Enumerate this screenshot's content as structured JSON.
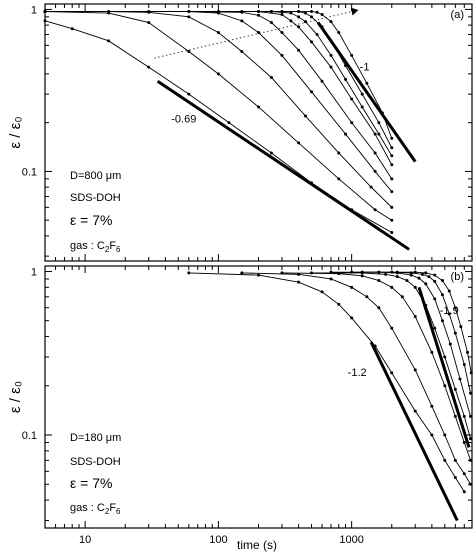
{
  "figure": {
    "x_axis_label": "time (s)",
    "x_ticks": [
      {
        "value": 10,
        "label": "10"
      },
      {
        "value": 100,
        "label": "100"
      },
      {
        "value": 1000,
        "label": "1000"
      }
    ]
  },
  "chart_data": [
    {
      "type": "line",
      "panel_label": "(a)",
      "ylabel": "ε / ε₀",
      "xlabel": "",
      "x_scale": "log",
      "y_scale": "log",
      "xlim": [
        5,
        8000
      ],
      "ylim": [
        0.028,
        1.08
      ],
      "y_ticks": [
        {
          "value": 1,
          "label": "1"
        },
        {
          "value": 0.1,
          "label": "0.1"
        }
      ],
      "annotations": {
        "D": "D=800 μm",
        "surfactant": "SDS-DOH",
        "strain": "ε = 7%",
        "gas_prefix": "gas : C",
        "gas_sub1": "2",
        "gas_mid": "F",
        "gas_sub2": "6"
      },
      "reference_lines": [
        {
          "label": "-1",
          "from": [
            560,
            0.83
          ],
          "to": [
            3000,
            0.115
          ],
          "label_at": [
            1250,
            0.42
          ]
        },
        {
          "label": "-0.69",
          "from": [
            35,
            0.36
          ],
          "to": [
            2700,
            0.033
          ],
          "label_at": [
            55,
            0.2
          ]
        }
      ],
      "arrow": {
        "from": [
          33,
          0.5
        ],
        "to": [
          1000,
          0.97
        ]
      },
      "series": [
        {
          "x": [
            5,
            8,
            15,
            30,
            60,
            120,
            250,
            500,
            1000,
            2000
          ],
          "y": [
            0.85,
            0.76,
            0.64,
            0.44,
            0.3,
            0.2,
            0.13,
            0.085,
            0.058,
            0.042
          ]
        },
        {
          "x": [
            5,
            15,
            30,
            60,
            100,
            200,
            400,
            800,
            1500,
            2000
          ],
          "y": [
            0.97,
            0.95,
            0.83,
            0.55,
            0.4,
            0.25,
            0.15,
            0.09,
            0.058,
            0.05
          ]
        },
        {
          "x": [
            5,
            15,
            30,
            60,
            100,
            150,
            250,
            450,
            800,
            1400,
            2000
          ],
          "y": [
            0.97,
            0.97,
            0.96,
            0.9,
            0.72,
            0.55,
            0.38,
            0.22,
            0.13,
            0.08,
            0.06
          ]
        },
        {
          "x": [
            5,
            30,
            60,
            100,
            150,
            200,
            300,
            500,
            900,
            1500,
            2000
          ],
          "y": [
            0.97,
            0.97,
            0.97,
            0.95,
            0.85,
            0.72,
            0.52,
            0.31,
            0.17,
            0.1,
            0.075
          ]
        },
        {
          "x": [
            5,
            60,
            150,
            200,
            250,
            300,
            400,
            600,
            1000,
            1500,
            2000
          ],
          "y": [
            0.97,
            0.97,
            0.96,
            0.92,
            0.83,
            0.72,
            0.56,
            0.36,
            0.2,
            0.13,
            0.09
          ]
        },
        {
          "x": [
            5,
            100,
            200,
            300,
            350,
            400,
            500,
            700,
            1000,
            1500,
            2000
          ],
          "y": [
            0.97,
            0.97,
            0.97,
            0.93,
            0.85,
            0.78,
            0.63,
            0.44,
            0.28,
            0.17,
            0.11
          ]
        },
        {
          "x": [
            5,
            150,
            250,
            350,
            400,
            450,
            550,
            700,
            900,
            1200,
            1600,
            2000
          ],
          "y": [
            0.97,
            0.97,
            0.97,
            0.95,
            0.9,
            0.84,
            0.7,
            0.52,
            0.37,
            0.25,
            0.17,
            0.125
          ]
        },
        {
          "x": [
            5,
            200,
            300,
            400,
            450,
            500,
            600,
            700,
            900,
            1200,
            1600,
            2000
          ],
          "y": [
            0.97,
            0.97,
            0.97,
            0.97,
            0.95,
            0.9,
            0.78,
            0.64,
            0.45,
            0.3,
            0.2,
            0.14
          ]
        },
        {
          "x": [
            5,
            250,
            400,
            500,
            550,
            600,
            700,
            800,
            1000,
            1300,
            1700,
            2000
          ],
          "y": [
            0.97,
            0.97,
            0.97,
            0.97,
            0.96,
            0.93,
            0.84,
            0.72,
            0.52,
            0.35,
            0.23,
            0.16
          ]
        }
      ]
    },
    {
      "type": "line",
      "panel_label": "(b)",
      "ylabel": "ε / ε₀",
      "xlabel": "time (s)",
      "x_scale": "log",
      "y_scale": "log",
      "xlim": [
        5,
        8000
      ],
      "ylim": [
        0.027,
        1.08
      ],
      "y_ticks": [
        {
          "value": 1,
          "label": "1"
        },
        {
          "value": 0.1,
          "label": "0.1"
        }
      ],
      "annotations": {
        "D": "D=180 μm",
        "surfactant": "SDS-DOH",
        "strain": "ε = 7%",
        "gas_prefix": "gas : C",
        "gas_sub1": "2",
        "gas_mid": "F",
        "gas_sub2": "6"
      },
      "reference_lines": [
        {
          "label": "-1.9",
          "from": [
            3200,
            0.8
          ],
          "to": [
            7600,
            0.084
          ],
          "label_at": [
            5400,
            0.55
          ]
        },
        {
          "label": "-1.2",
          "from": [
            1400,
            0.37
          ],
          "to": [
            6200,
            0.03
          ],
          "label_at": [
            1100,
            0.23
          ]
        }
      ],
      "series": [
        {
          "x": [
            60,
            200,
            400,
            600,
            800,
            1000,
            1500,
            2000,
            3000,
            4000,
            5000,
            6000,
            7000
          ],
          "y": [
            0.98,
            0.95,
            0.86,
            0.75,
            0.63,
            0.52,
            0.35,
            0.24,
            0.14,
            0.1,
            0.07,
            0.055,
            0.045
          ]
        },
        {
          "x": [
            150,
            400,
            700,
            1000,
            1300,
            1600,
            2000,
            3000,
            4000,
            5000,
            6000,
            7000,
            7800
          ],
          "y": [
            0.98,
            0.96,
            0.9,
            0.8,
            0.7,
            0.6,
            0.45,
            0.25,
            0.15,
            0.1,
            0.07,
            0.058,
            0.05
          ]
        },
        {
          "x": [
            300,
            800,
            1200,
            1600,
            2000,
            2400,
            3000,
            4000,
            5000,
            6000,
            7000,
            7800
          ],
          "y": [
            0.98,
            0.97,
            0.94,
            0.88,
            0.8,
            0.7,
            0.53,
            0.32,
            0.2,
            0.13,
            0.09,
            0.07
          ]
        },
        {
          "x": [
            500,
            1200,
            1800,
            2200,
            2600,
            3000,
            3600,
            4200,
            5000,
            6000,
            7000,
            7800
          ],
          "y": [
            0.98,
            0.98,
            0.96,
            0.93,
            0.88,
            0.8,
            0.62,
            0.45,
            0.3,
            0.19,
            0.13,
            0.095
          ]
        },
        {
          "x": [
            700,
            1600,
            2200,
            2800,
            3200,
            3600,
            4200,
            4800,
            5500,
            6500,
            7800
          ],
          "y": [
            0.99,
            0.99,
            0.98,
            0.95,
            0.91,
            0.84,
            0.68,
            0.5,
            0.36,
            0.22,
            0.13
          ]
        },
        {
          "x": [
            1000,
            2000,
            2800,
            3400,
            3800,
            4200,
            4800,
            5400,
            6000,
            7000,
            7800
          ],
          "y": [
            0.99,
            0.99,
            0.98,
            0.96,
            0.93,
            0.87,
            0.72,
            0.55,
            0.42,
            0.27,
            0.18
          ]
        },
        {
          "x": [
            1200,
            2200,
            3000,
            3600,
            4200,
            4800,
            5400,
            6000,
            6600,
            7400,
            7900
          ],
          "y": [
            0.99,
            0.99,
            0.99,
            0.98,
            0.95,
            0.88,
            0.76,
            0.6,
            0.46,
            0.32,
            0.24
          ]
        }
      ]
    }
  ]
}
